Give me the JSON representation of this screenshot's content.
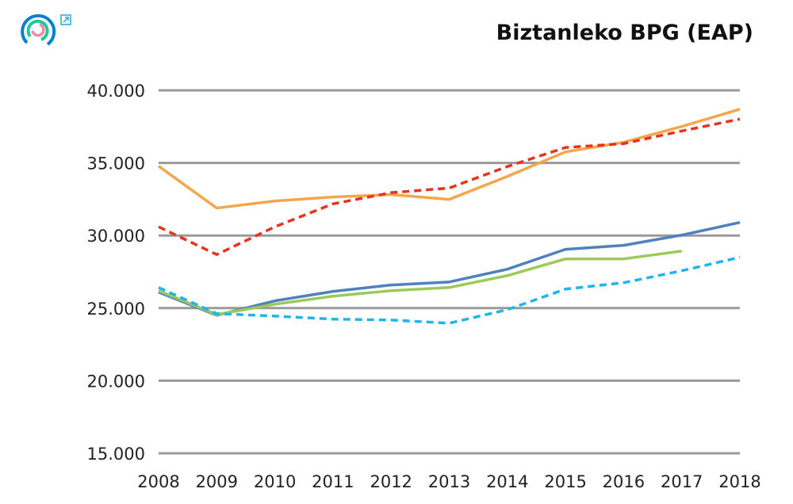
{
  "header": {
    "title": "Biztanleko BPG (EAP)",
    "logo_icon": "circular-rings-logo",
    "external_link_icon": "external-link-icon"
  },
  "chart_data": {
    "type": "line",
    "title": "Biztanleko BPG (EAP)",
    "xlabel": "",
    "ylabel": "",
    "x": [
      "2008",
      "2009",
      "2010",
      "2011",
      "2012",
      "2013",
      "2014",
      "2015",
      "2016",
      "2017",
      "2018"
    ],
    "ylim": [
      15000,
      40000
    ],
    "yticks": [
      15000,
      20000,
      25000,
      30000,
      35000,
      40000
    ],
    "ytick_labels": [
      "15.000",
      "20.000",
      "25.000",
      "30.000",
      "35.000",
      "40.000"
    ],
    "grid": "horizontal",
    "series": [
      {
        "color": "#f5a54a",
        "dash": "solid",
        "values": [
          34780,
          31890,
          32380,
          32650,
          32820,
          32490,
          34070,
          35760,
          36420,
          37510,
          38700
        ]
      },
      {
        "color": "#e8321e",
        "dash": "dashed",
        "values": [
          30600,
          28690,
          30600,
          32180,
          32950,
          33270,
          34750,
          36060,
          36330,
          37200,
          38020
        ]
      },
      {
        "color": "#4f81bd",
        "dash": "solid",
        "values": [
          26100,
          24510,
          25500,
          26150,
          26590,
          26800,
          27680,
          29050,
          29320,
          30030,
          30900
        ]
      },
      {
        "color": "#9bc95a",
        "dash": "solid",
        "values": [
          26200,
          24560,
          25270,
          25820,
          26200,
          26420,
          27240,
          28390,
          28390,
          28930,
          null
        ]
      },
      {
        "color": "#1fb5ea",
        "dash": "dashed",
        "values": [
          26420,
          24620,
          24450,
          24240,
          24180,
          23960,
          24890,
          26310,
          26750,
          27570,
          28500
        ]
      }
    ]
  }
}
